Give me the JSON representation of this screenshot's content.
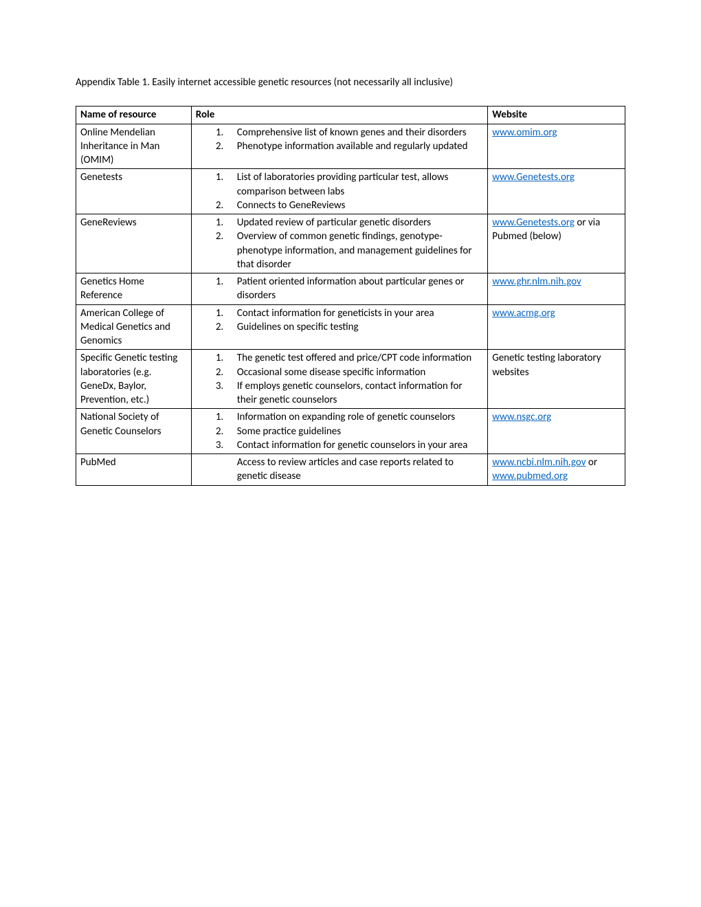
{
  "caption": "Appendix Table 1. Easily internet accessible genetic resources (not necessarily all inclusive)",
  "headers": {
    "name": "Name of resource",
    "role": "Role",
    "website": "Website"
  },
  "table": {
    "border_color": "#000000",
    "background_color": "#ffffff",
    "text_color": "#000000",
    "link_color": "#0563c1",
    "font_family": "Calibri",
    "body_fontsize": 15,
    "columns": [
      "Name of resource",
      "Role",
      "Website"
    ],
    "column_widths_pct": [
      21,
      54,
      25
    ]
  },
  "rows": [
    {
      "name": "Online Mendelian Inheritance in Man (OMIM)",
      "role_items": [
        "Comprehensive list of known genes and their disorders",
        "Phenotype information available and regularly updated"
      ],
      "website_parts": [
        {
          "text": "www.omim.org",
          "link": true
        }
      ]
    },
    {
      "name": "Genetests",
      "role_items": [
        "List of laboratories providing particular test, allows comparison between labs",
        "Connects to GeneReviews"
      ],
      "website_parts": [
        {
          "text": "www.Genetests.org",
          "link": true
        }
      ]
    },
    {
      "name": "GeneReviews",
      "role_items": [
        "Updated review of particular genetic disorders",
        "Overview of common genetic findings, genotype-phenotype information, and management guidelines for that disorder"
      ],
      "website_parts": [
        {
          "text": "www.Genetests.org",
          "link": true
        },
        {
          "text": "  or via Pubmed (below)",
          "link": false
        }
      ]
    },
    {
      "name": "Genetics Home Reference",
      "role_items": [
        "Patient oriented information about particular genes or disorders"
      ],
      "website_parts": [
        {
          "text": "www.ghr.nlm.nih.gov",
          "link": true
        }
      ]
    },
    {
      "name": "American College of Medical Genetics and Genomics",
      "role_items": [
        "Contact information for geneticists in your area",
        "Guidelines on specific testing"
      ],
      "website_parts": [
        {
          "text": "www.acmg.org",
          "link": true
        }
      ]
    },
    {
      "name": "Specific Genetic testing laboratories (e.g. GeneDx, Baylor, Prevention, etc.)",
      "role_items": [
        "The genetic test offered and price/CPT code information",
        "Occasional some disease specific information",
        "If employs genetic counselors, contact information for their  genetic counselors"
      ],
      "website_parts": [
        {
          "text": "Genetic testing laboratory websites",
          "link": false
        }
      ]
    },
    {
      "name": "National Society of Genetic Counselors",
      "role_items": [
        "Information on expanding role of genetic counselors",
        "Some practice guidelines",
        "Contact information for genetic counselors in your area"
      ],
      "website_parts": [
        {
          "text": "www.nsgc.org",
          "link": true
        }
      ]
    },
    {
      "name": "PubMed",
      "role_unnumbered": "Access to review articles and case reports related to genetic disease",
      "role_items": [],
      "website_parts": [
        {
          "text": "www.ncbi.nlm.nih.gov",
          "link": true
        },
        {
          "text": " or ",
          "link": false
        },
        {
          "text": "www.pubmed.org",
          "link": true
        }
      ]
    }
  ]
}
